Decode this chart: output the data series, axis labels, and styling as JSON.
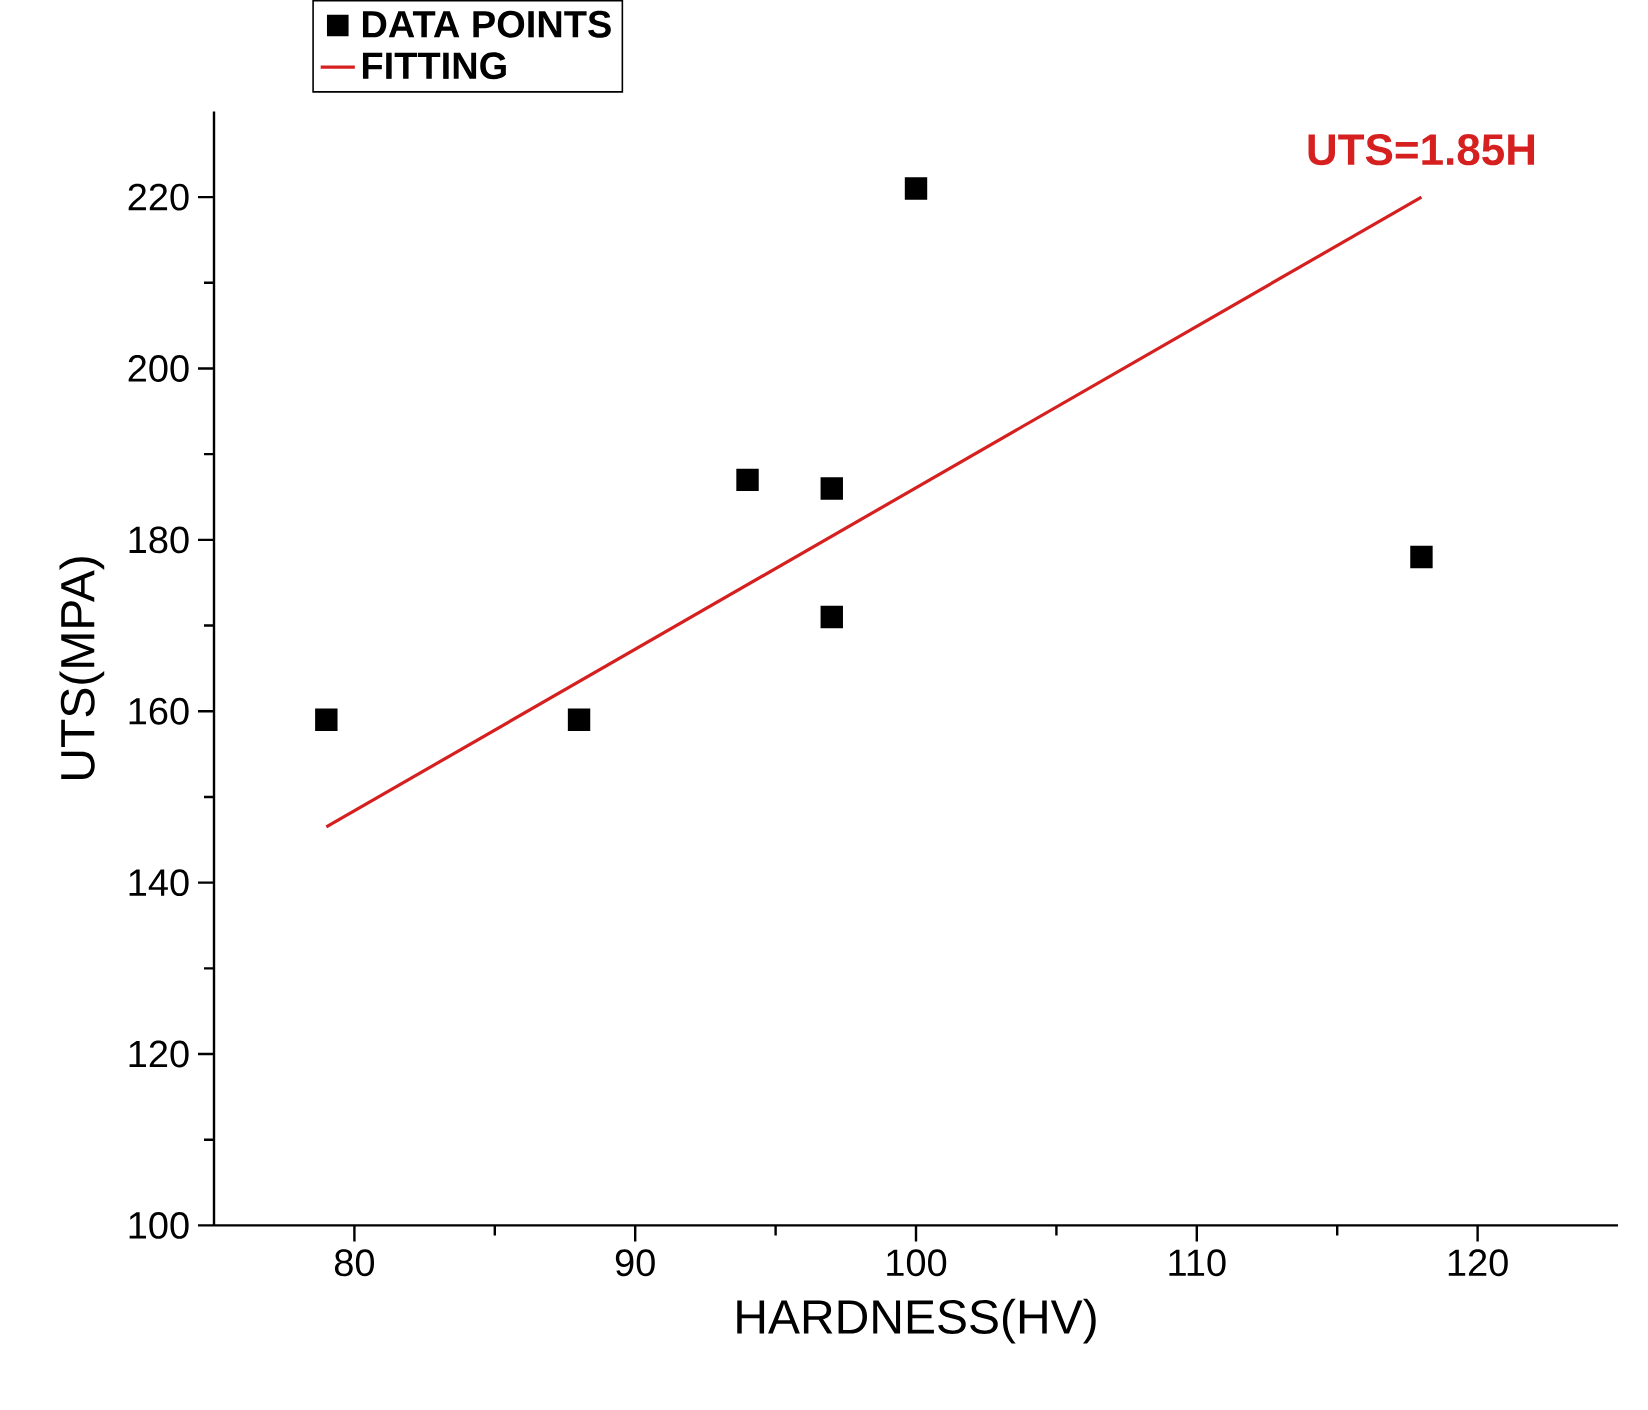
{
  "chart_data": {
    "type": "scatter",
    "xlabel": "HARDNESS(HV)",
    "ylabel": "UTS(MPA)",
    "xlim": [
      75,
      125
    ],
    "xticks": [
      80,
      90,
      100,
      110,
      120
    ],
    "ylim": [
      100,
      230
    ],
    "yticks": [
      100,
      120,
      140,
      160,
      180,
      200,
      220
    ],
    "series": [
      {
        "name": "DATA POINTS",
        "color": "#000000",
        "marker": "square",
        "x": [
          79,
          88,
          94,
          97,
          97,
          100,
          118
        ],
        "values": [
          159,
          159,
          187,
          186,
          171,
          221,
          178
        ]
      },
      {
        "name": "FITTING",
        "type": "line",
        "color": "#d62020",
        "marker": "none",
        "line_style": "solid",
        "x": [
          79,
          118
        ],
        "values": [
          146.5,
          220
        ]
      }
    ],
    "annotations": [
      {
        "text": "UTS=1.85H",
        "x": 118,
        "y": 220
      }
    ],
    "legend": "top left",
    "grid": false
  }
}
